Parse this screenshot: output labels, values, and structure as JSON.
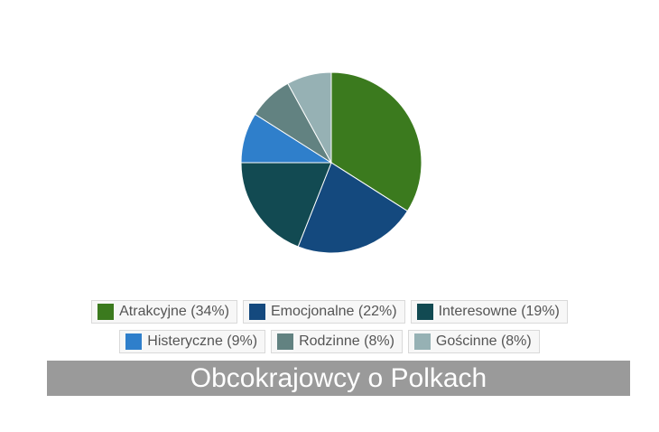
{
  "chart_data": {
    "type": "pie",
    "title": "Obcokrajowcy o Polkach",
    "slices": [
      {
        "label": "Atrakcyjne (34%)",
        "value": 34,
        "color": "#3b7a1e"
      },
      {
        "label": "Emocjonalne (22%)",
        "value": 22,
        "color": "#14497e"
      },
      {
        "label": "Interesowne (19%)",
        "value": 19,
        "color": "#124a52"
      },
      {
        "label": "Histeryczne (9%)",
        "value": 9,
        "color": "#2f7fcb"
      },
      {
        "label": "Rodzinne (8%)",
        "value": 8,
        "color": "#628281"
      },
      {
        "label": "Gościnne (8%)",
        "value": 8,
        "color": "#96b1b4"
      }
    ],
    "legend_position": "bottom",
    "title_background": "#9a9a9a"
  }
}
